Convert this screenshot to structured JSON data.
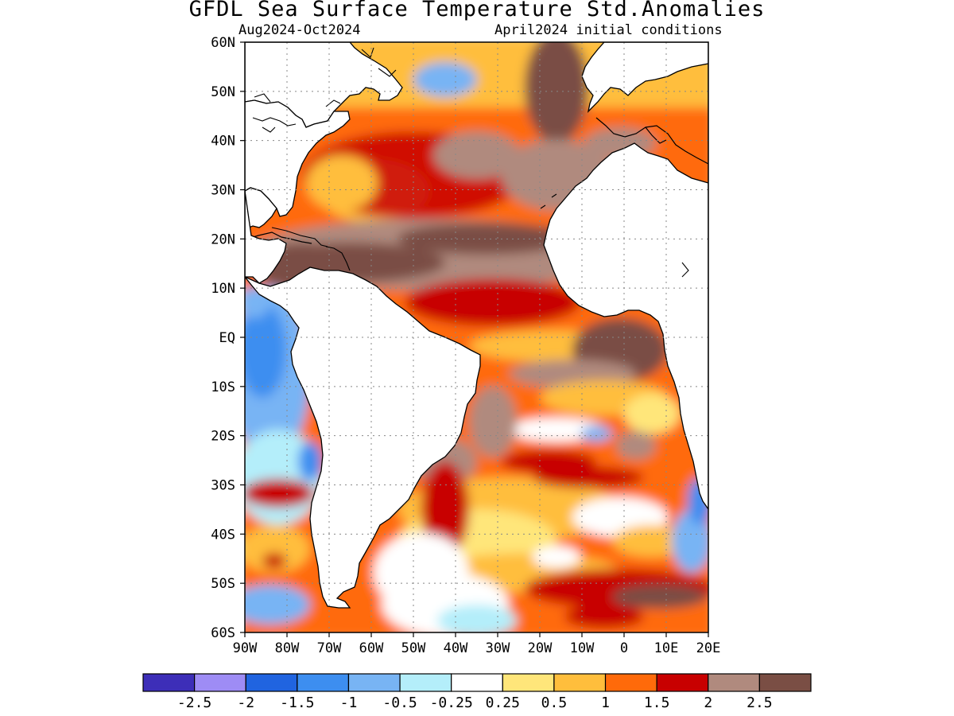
{
  "title": "GFDL Sea Surface Temperature Std.Anomalies",
  "subtitle_left": "Aug2024-Oct2024",
  "subtitle_right": "April2024 initial conditions",
  "map": {
    "lon_range": [
      -90,
      20
    ],
    "lat_range": [
      -60,
      60
    ],
    "lat_ticks": [
      {
        "value": 60,
        "label": "60N"
      },
      {
        "value": 50,
        "label": "50N"
      },
      {
        "value": 40,
        "label": "40N"
      },
      {
        "value": 30,
        "label": "30N"
      },
      {
        "value": 20,
        "label": "20N"
      },
      {
        "value": 10,
        "label": "10N"
      },
      {
        "value": 0,
        "label": "EQ"
      },
      {
        "value": -10,
        "label": "10S"
      },
      {
        "value": -20,
        "label": "20S"
      },
      {
        "value": -30,
        "label": "30S"
      },
      {
        "value": -40,
        "label": "40S"
      },
      {
        "value": -50,
        "label": "50S"
      },
      {
        "value": -60,
        "label": "60S"
      }
    ],
    "lon_ticks": [
      {
        "value": -90,
        "label": "90W"
      },
      {
        "value": -80,
        "label": "80W"
      },
      {
        "value": -70,
        "label": "70W"
      },
      {
        "value": -60,
        "label": "60W"
      },
      {
        "value": -50,
        "label": "50W"
      },
      {
        "value": -40,
        "label": "40W"
      },
      {
        "value": -30,
        "label": "30W"
      },
      {
        "value": -20,
        "label": "20W"
      },
      {
        "value": -10,
        "label": "10W"
      },
      {
        "value": 0,
        "label": "0"
      },
      {
        "value": 10,
        "label": "10E"
      },
      {
        "value": 20,
        "label": "20E"
      }
    ],
    "grid": "dotted"
  },
  "colorbar": {
    "colors": [
      "#3d2eb8",
      "#9e8cf5",
      "#2064e0",
      "#3d8ef0",
      "#78b4f4",
      "#b4eefa",
      "#ffffff",
      "#ffe67a",
      "#ffbe3c",
      "#ff6a0a",
      "#c80000",
      "#b08a7e",
      "#7a4e44"
    ],
    "labels": [
      "-2.5",
      "-2",
      "-1.5",
      "-1",
      "-0.5",
      "-0.25",
      "0.25",
      "0.5",
      "1",
      "1.5",
      "2",
      "2.5"
    ]
  },
  "colors": {
    "land": "#ffffff",
    "coastline": "#000000"
  }
}
